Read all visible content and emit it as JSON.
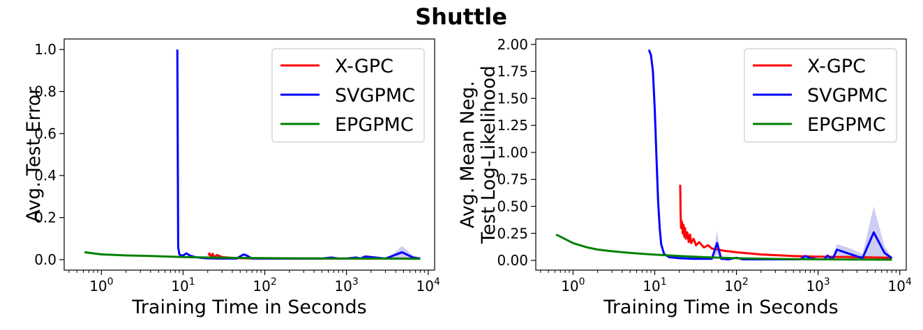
{
  "figure": {
    "title": "Shuttle"
  },
  "colors": {
    "X-GPC": "#ff0000",
    "SVGPMC": "#0000ff",
    "EPGPMC": "#008000",
    "band": "#c8c8f0"
  },
  "chart_data": [
    {
      "type": "line",
      "xscale": "log",
      "xlim": [
        0.35,
        12000
      ],
      "ylim": [
        -0.05,
        1.05
      ],
      "xlabel": "Training Time in Seconds",
      "ylabel": "Avg. Test Error",
      "xtick_labels": [
        {
          "v": 1,
          "exp": "0"
        },
        {
          "v": 10,
          "exp": "1"
        },
        {
          "v": 100,
          "exp": "2"
        },
        {
          "v": 1000,
          "exp": "3"
        },
        {
          "v": 10000,
          "exp": "4"
        }
      ],
      "yticks": [
        0.0,
        0.2,
        0.4,
        0.6,
        0.8,
        1.0
      ],
      "ytick_labels": [
        "0.0",
        "0.2",
        "0.4",
        "0.6",
        "0.8",
        "1.0"
      ],
      "legend": {
        "location": "upper right",
        "entries": [
          "X-GPC",
          "SVGPMC",
          "EPGPMC"
        ]
      },
      "series": [
        {
          "name": "X-GPC",
          "x": [
            20.5,
            21,
            22,
            23,
            24,
            26,
            30,
            40,
            60,
            100,
            300,
            1000,
            3000,
            8000
          ],
          "y": [
            0.02,
            0.03,
            0.012,
            0.028,
            0.01,
            0.022,
            0.012,
            0.008,
            0.006,
            0.005,
            0.005,
            0.005,
            0.005,
            0.005
          ]
        },
        {
          "name": "SVGPMC",
          "x": [
            8.5,
            8.7,
            9.0,
            9.5,
            10,
            11,
            12,
            14,
            17,
            20,
            30,
            45,
            55,
            60,
            70,
            100,
            200,
            500,
            650,
            800,
            1000,
            1300,
            1500,
            1700,
            3000,
            4800,
            6500,
            8000
          ],
          "y": [
            1.0,
            0.06,
            0.025,
            0.02,
            0.02,
            0.03,
            0.02,
            0.012,
            0.008,
            0.006,
            0.005,
            0.005,
            0.025,
            0.02,
            0.005,
            0.005,
            0.005,
            0.005,
            0.01,
            0.005,
            0.005,
            0.01,
            0.005,
            0.015,
            0.005,
            0.035,
            0.01,
            0.005
          ]
        },
        {
          "name": "EPGPMC",
          "x": [
            0.62,
            1.0,
            2.0,
            3.5,
            6,
            10,
            20,
            50,
            100,
            300,
            1000,
            3000,
            8000
          ],
          "y": [
            0.035,
            0.025,
            0.02,
            0.018,
            0.015,
            0.012,
            0.01,
            0.008,
            0.007,
            0.006,
            0.005,
            0.005,
            0.004
          ]
        }
      ],
      "bands": [
        {
          "series": "SVGPMC",
          "x": [
            1500,
            2500,
            3300,
            4800,
            6500,
            8000
          ],
          "upper": [
            0.02,
            0.01,
            0.01,
            0.065,
            0.02,
            0.01
          ],
          "lower": [
            0.0,
            0.0,
            0.0,
            0.005,
            0.0,
            0.0
          ]
        }
      ]
    },
    {
      "type": "line",
      "xscale": "log",
      "xlim": [
        0.35,
        12000
      ],
      "ylim": [
        -0.09,
        2.05
      ],
      "xlabel": "Training Time in Seconds",
      "ylabel": [
        "Avg. Mean Neg.",
        "Test Log-Likelihood"
      ],
      "xtick_labels": [
        {
          "v": 1,
          "exp": "0"
        },
        {
          "v": 10,
          "exp": "1"
        },
        {
          "v": 100,
          "exp": "2"
        },
        {
          "v": 1000,
          "exp": "3"
        },
        {
          "v": 10000,
          "exp": "4"
        }
      ],
      "yticks": [
        0.0,
        0.25,
        0.5,
        0.75,
        1.0,
        1.25,
        1.5,
        1.75,
        2.0
      ],
      "ytick_labels": [
        "0.00",
        "0.25",
        "0.50",
        "0.75",
        "1.00",
        "1.25",
        "1.50",
        "1.75",
        "2.00"
      ],
      "legend": {
        "location": "upper right",
        "entries": [
          "X-GPC",
          "SVGPMC",
          "EPGPMC"
        ]
      },
      "series": [
        {
          "name": "X-GPC",
          "x": [
            20.5,
            20.7,
            21,
            21.5,
            22,
            22.5,
            23,
            23.5,
            24,
            25,
            26,
            27,
            28,
            30,
            32,
            35,
            40,
            45,
            50,
            60,
            70,
            100,
            200,
            500,
            1000,
            3000,
            8000
          ],
          "y": [
            0.7,
            0.46,
            0.3,
            0.36,
            0.25,
            0.33,
            0.22,
            0.3,
            0.2,
            0.26,
            0.17,
            0.24,
            0.16,
            0.2,
            0.14,
            0.17,
            0.12,
            0.14,
            0.11,
            0.1,
            0.09,
            0.075,
            0.055,
            0.04,
            0.035,
            0.03,
            0.025
          ]
        },
        {
          "name": "SVGPMC",
          "x": [
            8.5,
            9.0,
            9.5,
            10,
            10.5,
            11,
            11.5,
            12,
            13,
            15,
            20,
            30,
            50,
            58,
            65,
            80,
            100,
            120,
            200,
            600,
            700,
            800,
            1000,
            1200,
            1300,
            1500,
            1700,
            3500,
            4800,
            6500,
            8000
          ],
          "y": [
            1.95,
            1.9,
            1.75,
            1.4,
            0.95,
            0.55,
            0.3,
            0.15,
            0.06,
            0.03,
            0.02,
            0.015,
            0.015,
            0.16,
            0.015,
            0.01,
            0.025,
            0.01,
            0.01,
            0.01,
            0.04,
            0.02,
            0.01,
            0.01,
            0.045,
            0.01,
            0.1,
            0.02,
            0.26,
            0.07,
            0.02
          ]
        },
        {
          "name": "EPGPMC",
          "x": [
            0.62,
            1.0,
            1.5,
            2.0,
            3.0,
            5,
            8,
            12,
            20,
            40,
            100,
            300,
            1000,
            3000,
            8000
          ],
          "y": [
            0.24,
            0.16,
            0.12,
            0.1,
            0.085,
            0.07,
            0.058,
            0.05,
            0.04,
            0.03,
            0.02,
            0.014,
            0.01,
            0.008,
            0.007
          ]
        }
      ],
      "bands": [
        {
          "series": "SVGPMC",
          "x": [
            50,
            58,
            65
          ],
          "upper": [
            0.02,
            0.27,
            0.02
          ],
          "lower": [
            0.0,
            0.06,
            0.0
          ]
        },
        {
          "series": "SVGPMC",
          "x": [
            1500,
            1700,
            2500,
            3500,
            4800,
            6500,
            8000
          ],
          "upper": [
            0.02,
            0.15,
            0.11,
            0.06,
            0.5,
            0.13,
            0.03
          ],
          "lower": [
            0.0,
            0.05,
            0.02,
            0.0,
            0.04,
            0.01,
            0.0
          ]
        }
      ]
    }
  ]
}
